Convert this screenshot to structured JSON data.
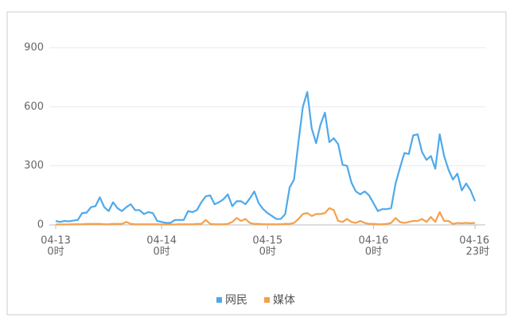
{
  "chart_data": {
    "type": "line",
    "categories": [
      [
        "04-13",
        "0时"
      ],
      null,
      null,
      null,
      null,
      null,
      null,
      null,
      null,
      null,
      null,
      null,
      null,
      null,
      null,
      null,
      null,
      null,
      null,
      null,
      null,
      null,
      null,
      null,
      [
        "04-14",
        "0时"
      ],
      null,
      null,
      null,
      null,
      null,
      null,
      null,
      null,
      null,
      null,
      null,
      null,
      null,
      null,
      null,
      null,
      null,
      null,
      null,
      null,
      null,
      null,
      null,
      [
        "04-15",
        "0时"
      ],
      null,
      null,
      null,
      null,
      null,
      null,
      null,
      null,
      null,
      null,
      null,
      null,
      null,
      null,
      null,
      null,
      null,
      null,
      null,
      null,
      null,
      null,
      null,
      [
        "04-16",
        "0时"
      ],
      null,
      null,
      null,
      null,
      null,
      null,
      null,
      null,
      null,
      null,
      null,
      null,
      null,
      null,
      null,
      null,
      null,
      null,
      null,
      null,
      null,
      null,
      [
        "04-16",
        "23时"
      ]
    ],
    "series": [
      {
        "name": "网民",
        "color": "#4ea9ea",
        "values": [
          20,
          15,
          20,
          18,
          22,
          25,
          60,
          62,
          90,
          95,
          140,
          90,
          70,
          115,
          85,
          70,
          90,
          105,
          75,
          75,
          55,
          65,
          60,
          20,
          15,
          10,
          10,
          25,
          25,
          25,
          70,
          65,
          75,
          115,
          145,
          150,
          105,
          115,
          130,
          155,
          95,
          120,
          120,
          105,
          135,
          170,
          110,
          80,
          60,
          45,
          30,
          30,
          55,
          190,
          230,
          420,
          600,
          675,
          490,
          415,
          510,
          570,
          420,
          440,
          410,
          305,
          300,
          215,
          170,
          155,
          170,
          150,
          110,
          70,
          80,
          80,
          85,
          210,
          290,
          365,
          360,
          455,
          460,
          370,
          330,
          350,
          285,
          460,
          350,
          280,
          230,
          260,
          175,
          210,
          175,
          120
        ]
      },
      {
        "name": "媒体",
        "color": "#f5a04c",
        "values": [
          2,
          2,
          2,
          2,
          3,
          3,
          3,
          5,
          5,
          5,
          5,
          3,
          3,
          5,
          5,
          5,
          15,
          5,
          3,
          3,
          3,
          3,
          3,
          3,
          2,
          2,
          2,
          2,
          3,
          3,
          3,
          3,
          5,
          5,
          25,
          5,
          3,
          3,
          3,
          5,
          15,
          35,
          20,
          30,
          10,
          5,
          5,
          3,
          3,
          3,
          3,
          3,
          5,
          5,
          10,
          30,
          55,
          60,
          45,
          55,
          55,
          60,
          85,
          75,
          20,
          15,
          30,
          15,
          10,
          20,
          10,
          5,
          5,
          3,
          3,
          5,
          10,
          35,
          15,
          10,
          15,
          20,
          20,
          30,
          15,
          40,
          15,
          65,
          20,
          20,
          5,
          10,
          8,
          10,
          8,
          10
        ]
      }
    ],
    "ylim": [
      0,
      900
    ],
    "yticks": [
      0,
      300,
      600,
      900
    ],
    "grid": true,
    "legend": "bottom"
  }
}
